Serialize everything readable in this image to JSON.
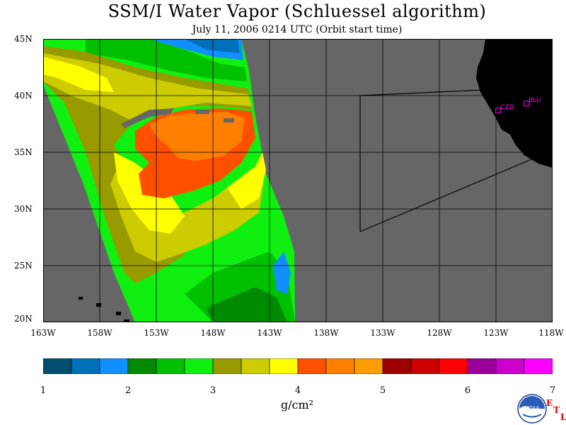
{
  "title": "SSM/I Water Vapor (Schluessel algorithm)",
  "subtitle": "July 11, 2006  0214 UTC  (Orbit start time)",
  "lat_labels": [
    "45N",
    "40N",
    "35N",
    "30N",
    "25N",
    "20N"
  ],
  "lon_labels": [
    "163W",
    "158W",
    "153W",
    "148W",
    "143W",
    "138W",
    "133W",
    "128W",
    "123W",
    "118W"
  ],
  "stations": [
    {
      "code": "CZD",
      "lon": -122.8,
      "lat": 38.7
    },
    {
      "code": "BLU",
      "lon": -120.3,
      "lat": 39.3
    }
  ],
  "colorbar": {
    "units": "g/cm²",
    "ticks": [
      "1",
      "2",
      "3",
      "4",
      "5",
      "6",
      "7"
    ],
    "colors": [
      "#004f6e",
      "#0070b8",
      "#1090ff",
      "#008a00",
      "#00c000",
      "#10f010",
      "#999900",
      "#cccc00",
      "#ffff00",
      "#ff5000",
      "#ff8000",
      "#ff9c00",
      "#9c0000",
      "#cc0000",
      "#ff0000",
      "#9c009c",
      "#cc00cc",
      "#ff00ff"
    ]
  },
  "colors": {
    "land": "#000000",
    "no_data": "#666666",
    "station": "#ff00ff",
    "etl": "#e00000"
  },
  "logo": {
    "text": "NOAA"
  },
  "etl": {
    "letters": [
      "E",
      "T",
      "L"
    ]
  }
}
